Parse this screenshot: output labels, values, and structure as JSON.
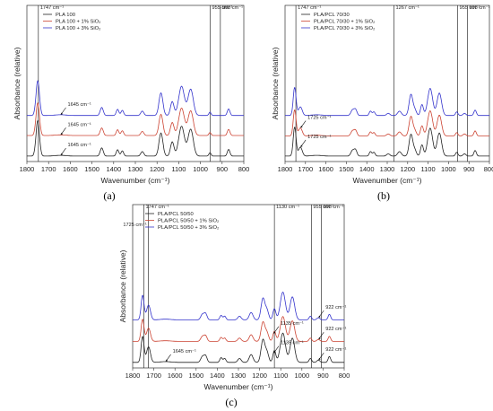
{
  "chart_data": [
    {
      "type": "line",
      "panel_label": "(a)",
      "panel_letter": "a",
      "xlabel": "Wavenumber (cm⁻¹)",
      "ylabel": "Absorbance (relative)",
      "xlim": [
        1800,
        800
      ],
      "x_ticks": [
        "1800",
        "1700",
        "1600",
        "1500",
        "1400",
        "1300",
        "1200",
        "1100",
        "1000",
        "900",
        "800"
      ],
      "legend": {
        "position": "top-left",
        "items": [
          "PLA 100",
          "PLA 100 + 1% SiO₂",
          "PLA 100 + 3% SiO₂"
        ]
      },
      "series": [
        {
          "name": "PLA 100",
          "color": "#222222",
          "offset": 0.0
        },
        {
          "name": "PLA 100 + 1% SiO₂",
          "color": "#cc4433",
          "offset": 0.3
        },
        {
          "name": "PLA 100 + 3% SiO₂",
          "color": "#3333cc",
          "offset": 0.6
        }
      ],
      "vlines": [
        1747,
        955,
        908
      ],
      "annotations": [
        {
          "text": "1747 cm⁻¹",
          "x": 1747,
          "kind": "top"
        },
        {
          "text": "955 cm⁻¹",
          "x": 955,
          "kind": "top"
        },
        {
          "text": "908 cm⁻¹",
          "x": 908,
          "kind": "top"
        },
        {
          "text": "1645 cm⁻¹",
          "x": 1645,
          "series": 2,
          "kind": "arrow"
        },
        {
          "text": "1645 cm⁻¹",
          "x": 1645,
          "series": 1,
          "kind": "arrow"
        },
        {
          "text": "1645 cm⁻¹",
          "x": 1645,
          "series": 0,
          "kind": "arrow"
        }
      ]
    },
    {
      "type": "line",
      "panel_label": "(b)",
      "panel_letter": "b",
      "xlabel": "Wavenumber (cm⁻¹)",
      "ylabel": "Absorbance (relative)",
      "xlim": [
        1800,
        800
      ],
      "x_ticks": [
        "1800",
        "1700",
        "1600",
        "1500",
        "1400",
        "1300",
        "1200",
        "1100",
        "1000",
        "900",
        "800"
      ],
      "legend": {
        "position": "top-left",
        "items": [
          "PLA/PCL 70/30",
          "PLA/PCL 70/30 + 1% SiO₂",
          "PLA/PCL 70/30 + 3% SiO₂"
        ]
      },
      "series": [
        {
          "name": "PLA/PCL 70/30",
          "color": "#222222",
          "offset": 0.0
        },
        {
          "name": "PLA/PCL 70/30 + 1% SiO₂",
          "color": "#cc4433",
          "offset": 0.3
        },
        {
          "name": "PLA/PCL 70/30 + 3% SiO₂",
          "color": "#3333cc",
          "offset": 0.6
        }
      ],
      "vlines": [
        1747,
        1267,
        955,
        908
      ],
      "annotations": [
        {
          "text": "1747 cm⁻¹",
          "x": 1747,
          "kind": "top"
        },
        {
          "text": "1267 cm⁻¹",
          "x": 1267,
          "kind": "top"
        },
        {
          "text": "955 cm⁻¹",
          "x": 955,
          "kind": "top"
        },
        {
          "text": "908 cm⁻¹",
          "x": 908,
          "kind": "top"
        },
        {
          "text": "1725 cm⁻¹",
          "x": 1725,
          "series": 1,
          "kind": "arrow"
        },
        {
          "text": "1725 cm⁻¹",
          "x": 1725,
          "series": 0,
          "kind": "arrow"
        }
      ]
    },
    {
      "type": "line",
      "panel_label": "(c)",
      "panel_letter": "c",
      "xlabel": "Wavenumber (cm⁻¹)",
      "ylabel": "Absorbance (relative)",
      "xlim": [
        1800,
        800
      ],
      "x_ticks": [
        "1800",
        "1700",
        "1600",
        "1500",
        "1400",
        "1300",
        "1200",
        "1100",
        "1000",
        "900",
        "800"
      ],
      "legend": {
        "position": "top-left",
        "items": [
          "PLA/PCL 50/50",
          "PLA/PCL 50/50 + 1% SiO₂",
          "PLA/PCL 50/50 + 3% SiO₂"
        ]
      },
      "series": [
        {
          "name": "PLA/PCL 50/50",
          "color": "#222222",
          "offset": 0.0
        },
        {
          "name": "PLA/PCL 50/50 + 1% SiO₂",
          "color": "#cc4433",
          "offset": 0.3
        },
        {
          "name": "PLA/PCL 50/50 + 3% SiO₂",
          "color": "#3333cc",
          "offset": 0.6
        }
      ],
      "vlines": [
        1747,
        1725,
        1130,
        955,
        908
      ],
      "annotations": [
        {
          "text": "1747 cm⁻¹",
          "x": 1747,
          "kind": "top"
        },
        {
          "text": "1725 cm⁻¹",
          "x": 1725,
          "kind": "top2"
        },
        {
          "text": "1130 cm⁻¹",
          "x": 1130,
          "kind": "top"
        },
        {
          "text": "955 cm⁻¹",
          "x": 955,
          "kind": "top"
        },
        {
          "text": "908 cm⁻¹",
          "x": 908,
          "kind": "top"
        },
        {
          "text": "922 cm⁻¹",
          "x": 922,
          "series": 2,
          "kind": "arrow"
        },
        {
          "text": "1135 cm⁻¹",
          "x": 1135,
          "series": 1,
          "kind": "arrow"
        },
        {
          "text": "922 cm⁻¹",
          "x": 922,
          "series": 1,
          "kind": "arrow"
        },
        {
          "text": "1135 cm⁻¹",
          "x": 1135,
          "series": 0,
          "kind": "arrow"
        },
        {
          "text": "922 cm⁻¹",
          "x": 922,
          "series": 0,
          "kind": "arrow"
        },
        {
          "text": "1645 cm⁻¹",
          "x": 1645,
          "series": 0,
          "kind": "arrow"
        }
      ]
    }
  ]
}
